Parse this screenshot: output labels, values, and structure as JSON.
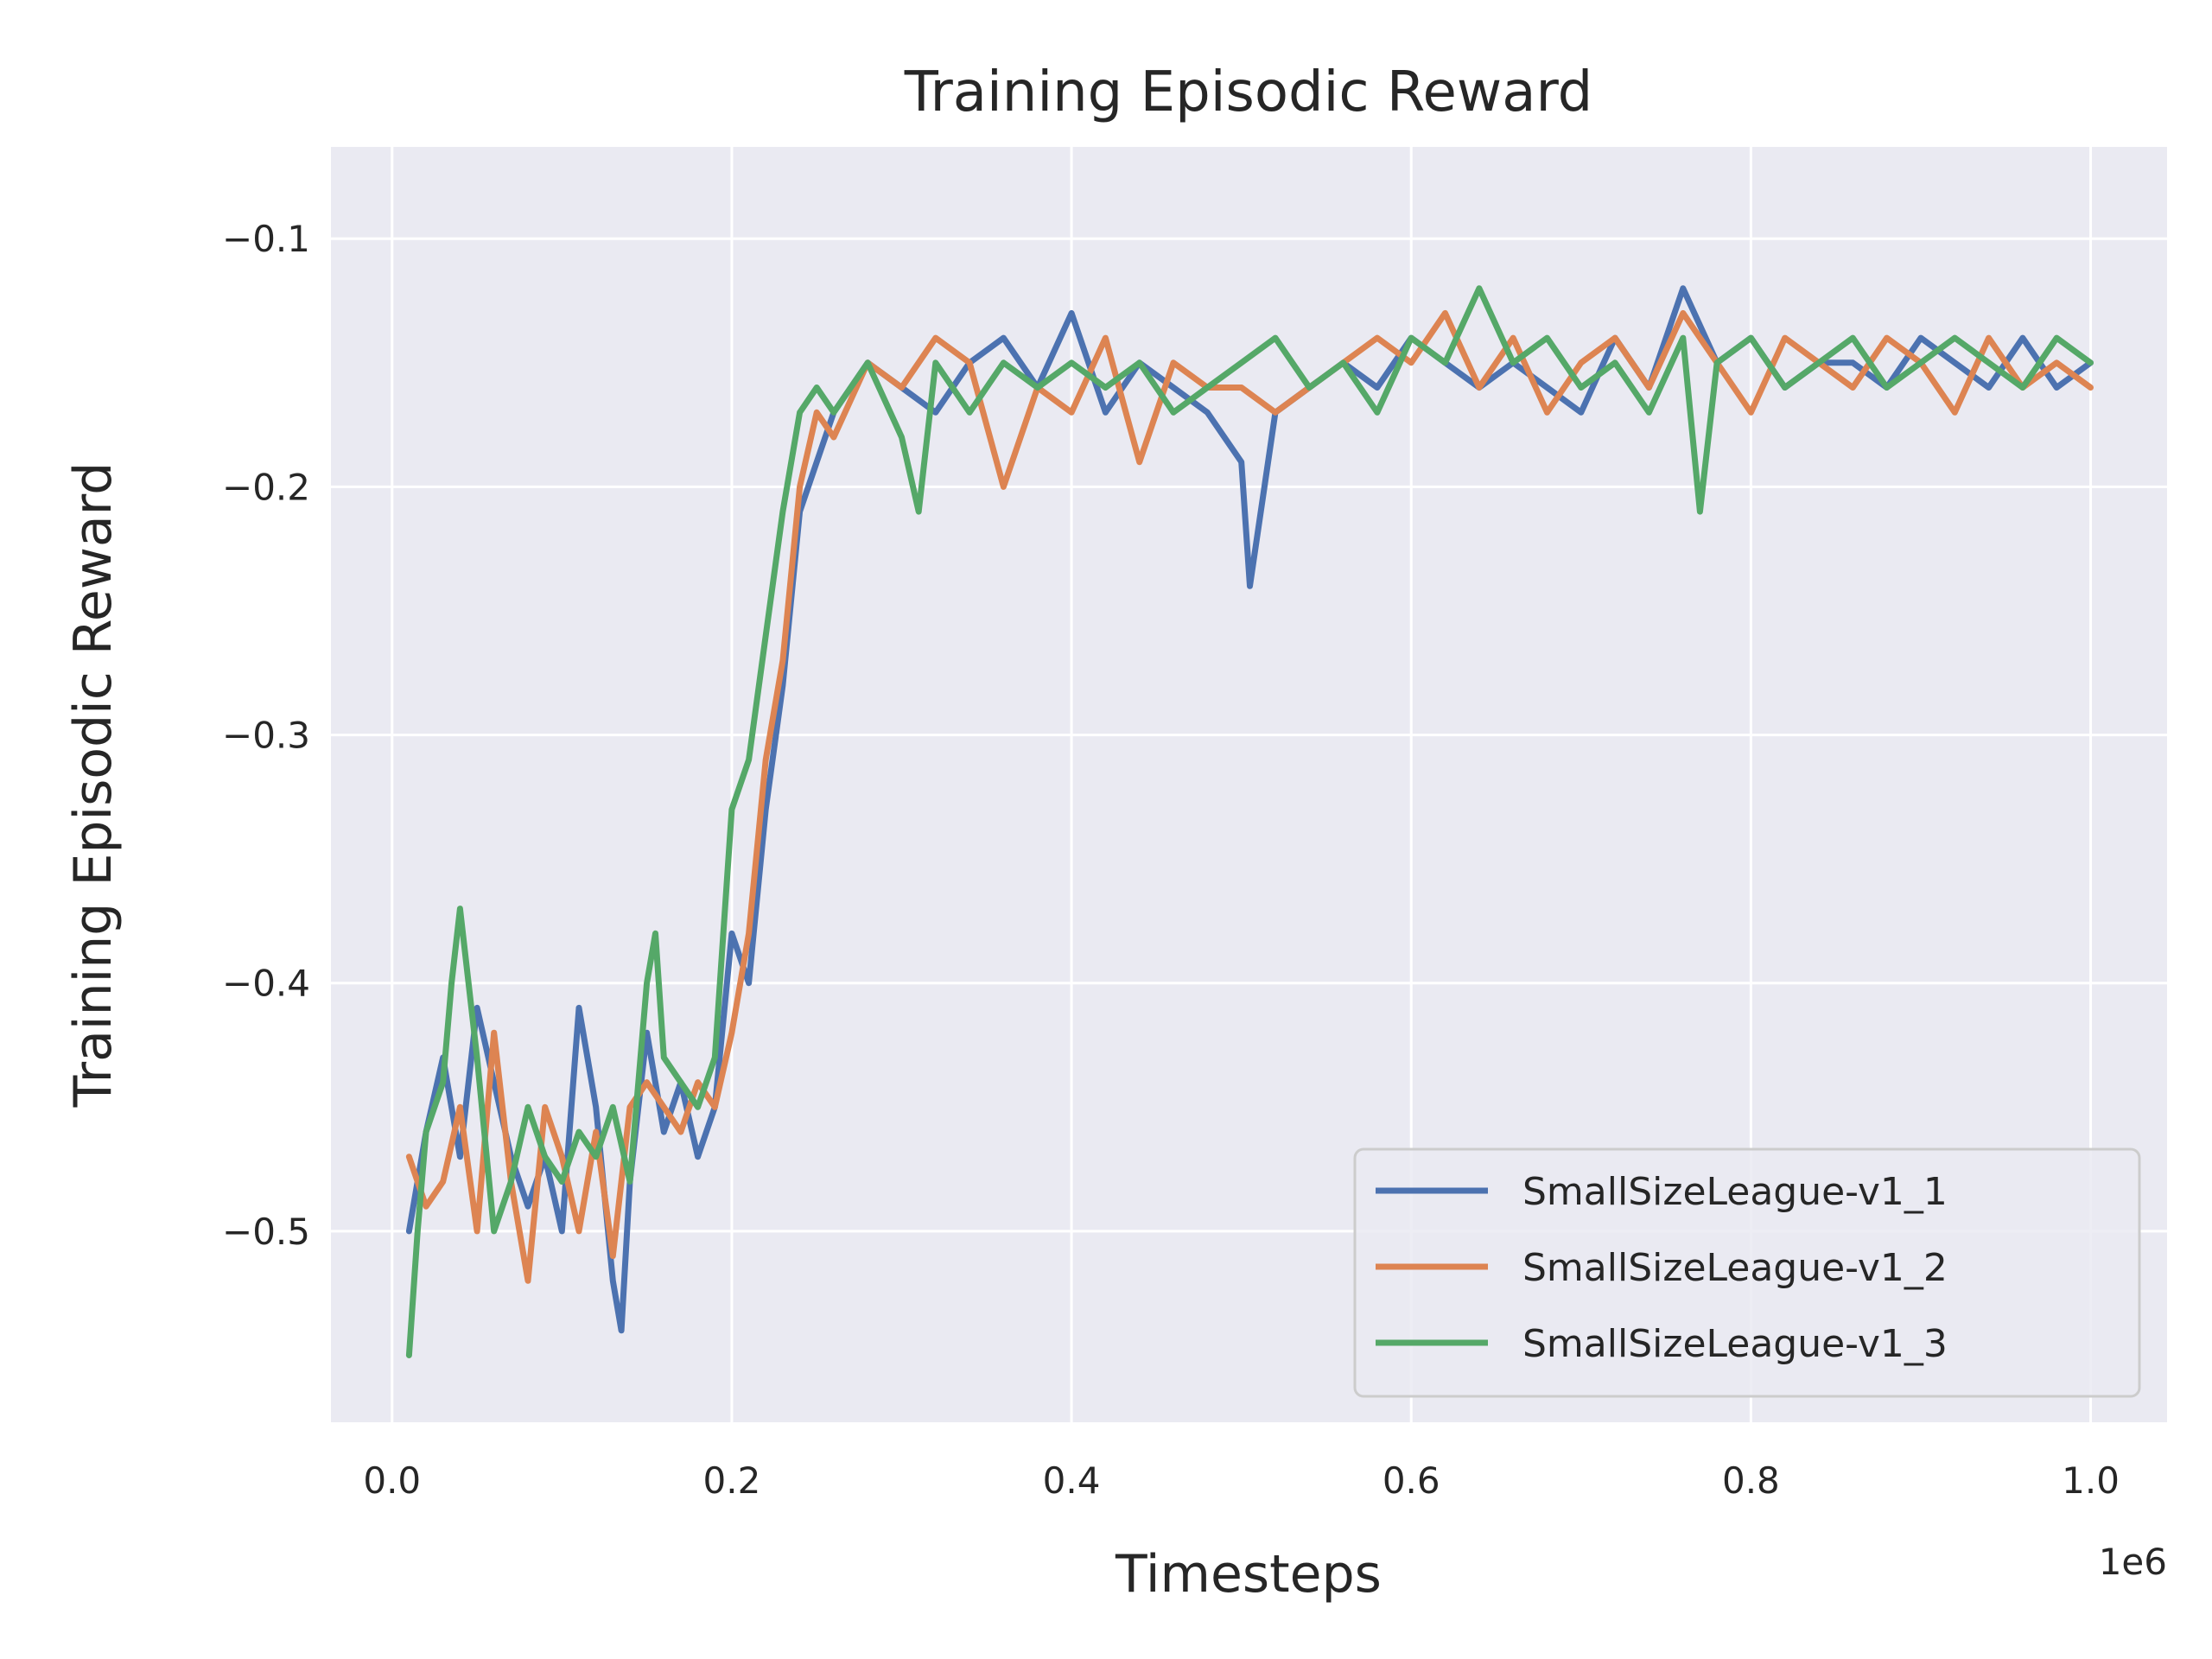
{
  "chart_data": {
    "type": "line",
    "title": "Training Episodic Reward",
    "xlabel": "Timesteps",
    "ylabel": "Training Episodic Reward",
    "x_multiplier_label": "1e6",
    "xlim": [
      -0.036,
      1.045
    ],
    "ylim": [
      -0.577,
      -0.063
    ],
    "x_ticks": [
      0.0,
      0.2,
      0.4,
      0.6,
      0.8,
      1.0
    ],
    "x_tick_labels": [
      "0.0",
      "0.2",
      "0.4",
      "0.6",
      "0.8",
      "1.0"
    ],
    "y_ticks": [
      -0.1,
      -0.2,
      -0.3,
      -0.4,
      -0.5
    ],
    "y_tick_labels": [
      "−0.1",
      "−0.2",
      "−0.3",
      "−0.4",
      "−0.5"
    ],
    "grid": true,
    "legend_position": "bottom-right",
    "background_color": "#eaeaf2",
    "grid_color": "#ffffff",
    "series": [
      {
        "name": "SmallSizeLeague-v1_1",
        "color": "#4c72b0",
        "x": [
          0.01,
          0.02,
          0.03,
          0.04,
          0.05,
          0.06,
          0.07,
          0.08,
          0.09,
          0.1,
          0.11,
          0.12,
          0.13,
          0.135,
          0.14,
          0.15,
          0.16,
          0.17,
          0.18,
          0.19,
          0.2,
          0.21,
          0.22,
          0.23,
          0.24,
          0.25,
          0.26,
          0.28,
          0.3,
          0.32,
          0.34,
          0.36,
          0.38,
          0.4,
          0.42,
          0.44,
          0.46,
          0.48,
          0.5,
          0.505,
          0.52,
          0.54,
          0.56,
          0.58,
          0.6,
          0.62,
          0.64,
          0.66,
          0.68,
          0.7,
          0.72,
          0.74,
          0.76,
          0.78,
          0.8,
          0.82,
          0.84,
          0.86,
          0.88,
          0.9,
          0.92,
          0.94,
          0.96,
          0.98,
          1.0
        ],
        "y": [
          -0.5,
          -0.46,
          -0.43,
          -0.47,
          -0.41,
          -0.44,
          -0.47,
          -0.49,
          -0.47,
          -0.5,
          -0.41,
          -0.45,
          -0.52,
          -0.54,
          -0.48,
          -0.42,
          -0.46,
          -0.44,
          -0.47,
          -0.45,
          -0.38,
          -0.4,
          -0.33,
          -0.28,
          -0.21,
          -0.19,
          -0.17,
          -0.15,
          -0.16,
          -0.17,
          -0.15,
          -0.14,
          -0.16,
          -0.13,
          -0.17,
          -0.15,
          -0.16,
          -0.17,
          -0.19,
          -0.24,
          -0.17,
          -0.16,
          -0.15,
          -0.16,
          -0.14,
          -0.15,
          -0.16,
          -0.15,
          -0.16,
          -0.17,
          -0.14,
          -0.16,
          -0.12,
          -0.15,
          -0.14,
          -0.16,
          -0.15,
          -0.15,
          -0.16,
          -0.14,
          -0.15,
          -0.16,
          -0.14,
          -0.16,
          -0.15
        ]
      },
      {
        "name": "SmallSizeLeague-v1_2",
        "color": "#dd8452",
        "x": [
          0.01,
          0.02,
          0.03,
          0.04,
          0.05,
          0.06,
          0.07,
          0.08,
          0.09,
          0.1,
          0.11,
          0.12,
          0.13,
          0.14,
          0.15,
          0.16,
          0.17,
          0.18,
          0.19,
          0.2,
          0.21,
          0.22,
          0.23,
          0.24,
          0.25,
          0.26,
          0.28,
          0.3,
          0.32,
          0.34,
          0.36,
          0.38,
          0.4,
          0.42,
          0.44,
          0.46,
          0.48,
          0.5,
          0.52,
          0.54,
          0.56,
          0.58,
          0.6,
          0.62,
          0.64,
          0.66,
          0.68,
          0.7,
          0.72,
          0.74,
          0.76,
          0.78,
          0.8,
          0.82,
          0.84,
          0.86,
          0.88,
          0.9,
          0.92,
          0.94,
          0.96,
          0.98,
          1.0
        ],
        "y": [
          -0.47,
          -0.49,
          -0.48,
          -0.45,
          -0.5,
          -0.42,
          -0.48,
          -0.52,
          -0.45,
          -0.47,
          -0.5,
          -0.46,
          -0.51,
          -0.45,
          -0.44,
          -0.45,
          -0.46,
          -0.44,
          -0.45,
          -0.42,
          -0.38,
          -0.31,
          -0.27,
          -0.2,
          -0.17,
          -0.18,
          -0.15,
          -0.16,
          -0.14,
          -0.15,
          -0.2,
          -0.16,
          -0.17,
          -0.14,
          -0.19,
          -0.15,
          -0.16,
          -0.16,
          -0.17,
          -0.16,
          -0.15,
          -0.14,
          -0.15,
          -0.13,
          -0.16,
          -0.14,
          -0.17,
          -0.15,
          -0.14,
          -0.16,
          -0.13,
          -0.15,
          -0.17,
          -0.14,
          -0.15,
          -0.16,
          -0.14,
          -0.15,
          -0.17,
          -0.14,
          -0.16,
          -0.15,
          -0.16
        ]
      },
      {
        "name": "SmallSizeLeague-v1_3",
        "color": "#55a868",
        "x": [
          0.01,
          0.015,
          0.02,
          0.03,
          0.035,
          0.04,
          0.05,
          0.06,
          0.07,
          0.08,
          0.09,
          0.1,
          0.11,
          0.12,
          0.13,
          0.14,
          0.15,
          0.155,
          0.16,
          0.17,
          0.18,
          0.19,
          0.2,
          0.21,
          0.22,
          0.23,
          0.24,
          0.25,
          0.26,
          0.28,
          0.3,
          0.31,
          0.32,
          0.34,
          0.36,
          0.38,
          0.4,
          0.42,
          0.44,
          0.46,
          0.48,
          0.5,
          0.52,
          0.54,
          0.56,
          0.58,
          0.6,
          0.62,
          0.64,
          0.66,
          0.68,
          0.7,
          0.72,
          0.74,
          0.76,
          0.77,
          0.78,
          0.8,
          0.82,
          0.84,
          0.86,
          0.88,
          0.9,
          0.92,
          0.94,
          0.96,
          0.98,
          1.0
        ],
        "y": [
          -0.55,
          -0.5,
          -0.46,
          -0.44,
          -0.4,
          -0.37,
          -0.43,
          -0.5,
          -0.48,
          -0.45,
          -0.47,
          -0.48,
          -0.46,
          -0.47,
          -0.45,
          -0.48,
          -0.4,
          -0.38,
          -0.43,
          -0.44,
          -0.45,
          -0.43,
          -0.33,
          -0.31,
          -0.26,
          -0.21,
          -0.17,
          -0.16,
          -0.17,
          -0.15,
          -0.18,
          -0.21,
          -0.15,
          -0.17,
          -0.15,
          -0.16,
          -0.15,
          -0.16,
          -0.15,
          -0.17,
          -0.16,
          -0.15,
          -0.14,
          -0.16,
          -0.15,
          -0.17,
          -0.14,
          -0.15,
          -0.12,
          -0.15,
          -0.14,
          -0.16,
          -0.15,
          -0.17,
          -0.14,
          -0.21,
          -0.15,
          -0.14,
          -0.16,
          -0.15,
          -0.14,
          -0.16,
          -0.15,
          -0.14,
          -0.15,
          -0.16,
          -0.14,
          -0.15
        ]
      }
    ]
  }
}
